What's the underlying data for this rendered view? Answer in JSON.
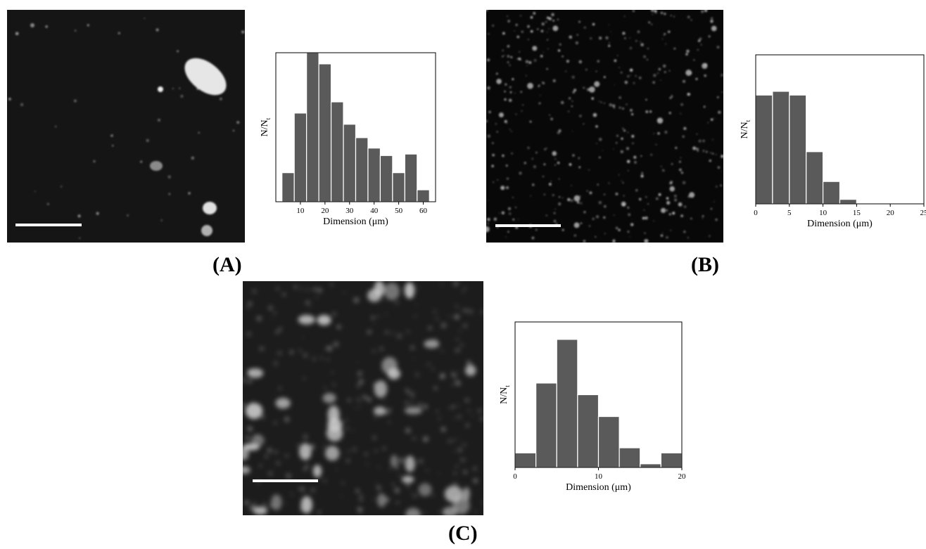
{
  "panels": [
    {
      "label": "(A)",
      "image": {
        "texture": "sparse-large-particles",
        "description_ref": "fluorescence micrograph"
      },
      "chart_data": {
        "type": "bar",
        "xlabel": "Dimension (μm)",
        "ylabel": "N/N",
        "ylabel_sub": "t",
        "xlim": [
          0,
          65
        ],
        "ylim": [
          0,
          1
        ],
        "xticks": [
          10,
          20,
          30,
          40,
          50,
          60
        ],
        "bin_width": 5,
        "bin_starts": [
          2.5,
          7.5,
          12.5,
          17.5,
          22.5,
          27.5,
          32.5,
          37.5,
          42.5,
          47.5,
          52.5,
          57.5
        ],
        "values": [
          0.195,
          0.595,
          1.0,
          0.925,
          0.67,
          0.52,
          0.43,
          0.36,
          0.31,
          0.195,
          0.32,
          0.08
        ]
      }
    },
    {
      "label": "(B)",
      "image": {
        "texture": "dense-small-particles"
      },
      "chart_data": {
        "type": "bar",
        "xlabel": "Dimension (μm)",
        "ylabel": "N/N",
        "ylabel_sub": "t",
        "xlim": [
          0,
          25
        ],
        "ylim": [
          0,
          1
        ],
        "xticks": [
          0,
          5,
          10,
          15,
          20,
          25
        ],
        "bin_width": 2.5,
        "bin_starts": [
          0,
          2.5,
          5,
          7.5,
          10,
          12.5,
          15
        ],
        "values": [
          0.73,
          0.755,
          0.73,
          0.35,
          0.15,
          0.03,
          0.005
        ]
      }
    },
    {
      "label": "(C)",
      "image": {
        "texture": "blurred-medium-particles"
      },
      "chart_data": {
        "type": "bar",
        "xlabel": "Dimension (μm)",
        "ylabel": "N/N",
        "ylabel_sub": "t",
        "xlim": [
          0,
          20
        ],
        "ylim": [
          0,
          1
        ],
        "xticks": [
          0,
          10,
          20
        ],
        "bin_width": 2.5,
        "bin_starts": [
          0,
          2.5,
          5,
          7.5,
          10,
          12.5,
          15,
          17.5
        ],
        "values": [
          0.1,
          0.58,
          0.88,
          0.5,
          0.35,
          0.135,
          0.025,
          0.1
        ]
      }
    }
  ]
}
